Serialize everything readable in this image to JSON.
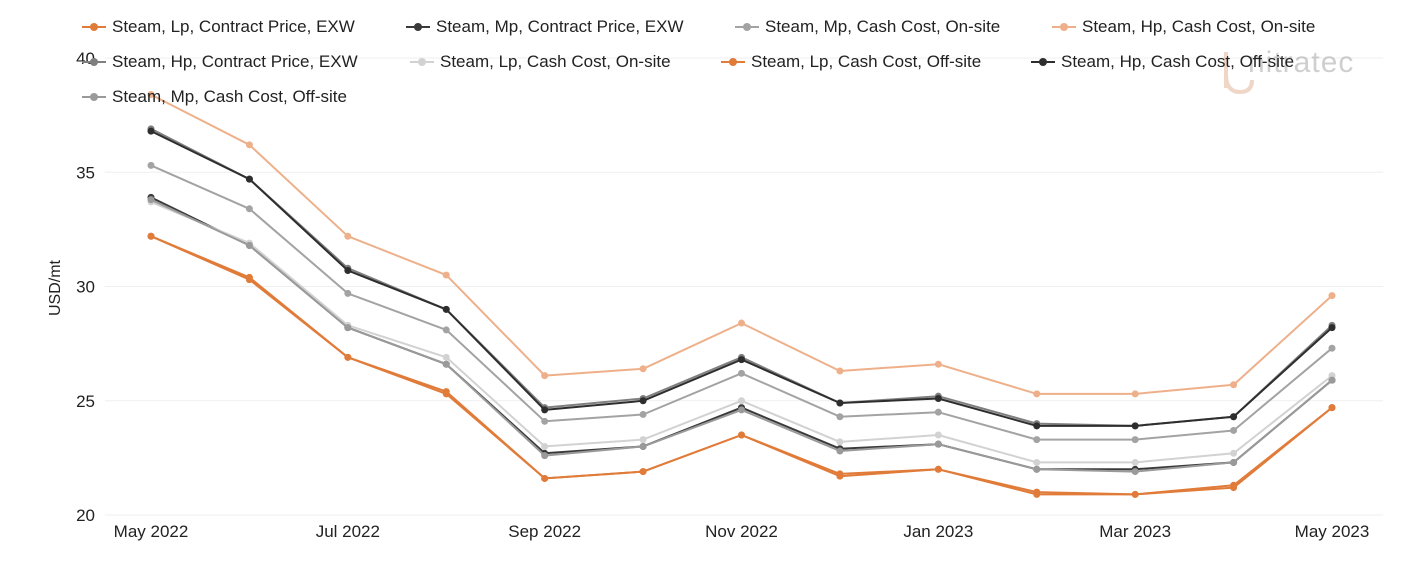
{
  "watermark": "nitratec",
  "chart_data": {
    "type": "line",
    "ylabel": "USD/mt",
    "xlabel": "",
    "ylim": [
      20,
      40
    ],
    "yticks": [
      20,
      25,
      30,
      35,
      40
    ],
    "x": [
      "May 2022",
      "Jun 2022",
      "Jul 2022",
      "Aug 2022",
      "Sep 2022",
      "Oct 2022",
      "Nov 2022",
      "Dec 2022",
      "Jan 2023",
      "Feb 2023",
      "Mar 2023",
      "Apr 2023",
      "May 2023"
    ],
    "xtick_labels": [
      "May 2022",
      "Jul 2022",
      "Sep 2022",
      "Nov 2022",
      "Jan 2023",
      "Mar 2023",
      "May 2023"
    ],
    "grid": true,
    "legend": "top",
    "series": [
      {
        "name": "Steam, Lp, Contract Price, EXW",
        "color": "#e07b39",
        "values": [
          32.2,
          30.4,
          26.9,
          25.4,
          21.6,
          21.9,
          23.5,
          21.8,
          22.0,
          21.0,
          20.9,
          21.3,
          24.7
        ]
      },
      {
        "name": "Steam, Mp, Contract Price, EXW",
        "color": "#3a3a3a",
        "values": [
          33.9,
          31.8,
          28.2,
          26.6,
          22.7,
          23.0,
          24.7,
          22.9,
          23.1,
          22.0,
          22.0,
          22.3,
          25.9
        ]
      },
      {
        "name": "Steam, Mp, Cash Cost, On-site",
        "color": "#a3a3a3",
        "values": [
          35.3,
          33.4,
          29.7,
          28.1,
          24.1,
          24.4,
          26.2,
          24.3,
          24.5,
          23.3,
          23.3,
          23.7,
          27.3
        ]
      },
      {
        "name": "Steam, Hp, Cash Cost, On-site",
        "color": "#eeb08a",
        "values": [
          38.4,
          36.2,
          32.2,
          30.5,
          26.1,
          26.4,
          28.4,
          26.3,
          26.6,
          25.3,
          25.3,
          25.7,
          29.6
        ]
      },
      {
        "name": "Steam, Hp, Contract Price, EXW",
        "color": "#7f7f7f",
        "values": [
          36.9,
          34.7,
          30.8,
          29.0,
          24.7,
          25.1,
          26.9,
          24.9,
          25.2,
          24.0,
          23.9,
          24.3,
          28.3
        ]
      },
      {
        "name": "Steam, Lp, Cash Cost, On-site",
        "color": "#d2d2d2",
        "values": [
          33.7,
          31.9,
          28.3,
          26.9,
          23.0,
          23.3,
          25.0,
          23.2,
          23.5,
          22.3,
          22.3,
          22.7,
          26.1
        ]
      },
      {
        "name": "Steam, Lp, Cash Cost, Off-site",
        "color": "#e07b39",
        "values": [
          32.2,
          30.3,
          26.9,
          25.3,
          21.6,
          21.9,
          23.5,
          21.7,
          22.0,
          20.9,
          20.9,
          21.2,
          24.7
        ]
      },
      {
        "name": "Steam, Hp, Cash Cost, Off-site",
        "color": "#2e2e2e",
        "values": [
          36.8,
          34.7,
          30.7,
          29.0,
          24.6,
          25.0,
          26.8,
          24.9,
          25.1,
          23.9,
          23.9,
          24.3,
          28.2
        ]
      },
      {
        "name": "Steam, Mp, Cash Cost, Off-site",
        "color": "#9a9a9a",
        "values": [
          33.8,
          31.8,
          28.2,
          26.6,
          22.6,
          23.0,
          24.6,
          22.8,
          23.1,
          22.0,
          21.9,
          22.3,
          25.9
        ]
      }
    ]
  }
}
